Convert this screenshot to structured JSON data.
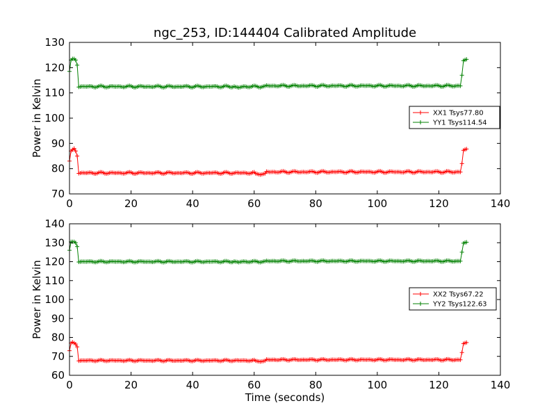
{
  "figure": {
    "title": "ngc_253, ID:144404 Calibrated Amplitude"
  },
  "chart_data": [
    {
      "type": "line",
      "title": "ngc_253, ID:144404 Calibrated Amplitude",
      "xlabel": "",
      "ylabel": "Power in Kelvin",
      "xlim": [
        0,
        140
      ],
      "ylim": [
        70,
        130
      ],
      "xticks": [
        0,
        20,
        40,
        60,
        80,
        100,
        120,
        140
      ],
      "yticks": [
        70,
        80,
        90,
        100,
        110,
        120,
        130
      ],
      "legend_position": "right",
      "series": [
        {
          "name": "XX1 Tsys77.80",
          "color": "#ff0000",
          "marker": "plus",
          "on_level": 87.5,
          "off_level": 78.3,
          "off_level_late": 78.7,
          "dip_at": 62,
          "dip_value": 77.6,
          "ramp_start": 127,
          "ramp_start_value": 82,
          "t_start": 0,
          "t_end": 129,
          "start_points": [
            [
              0,
              83
            ],
            [
              0.5,
              87
            ],
            [
              1,
              87.5
            ],
            [
              1.5,
              88
            ],
            [
              2,
              87
            ],
            [
              2.5,
              85
            ]
          ]
        },
        {
          "name": "YY1 Tsys114.54",
          "color": "#008000",
          "marker": "plus",
          "on_level": 123,
          "off_level": 112.5,
          "off_level_late": 112.8,
          "dip_at": 55,
          "dip_value": 112.1,
          "ramp_start": 127,
          "ramp_start_value": 117,
          "t_start": 0,
          "t_end": 129,
          "start_points": [
            [
              0,
              118.5
            ],
            [
              0.5,
              123
            ],
            [
              1,
              123.5
            ],
            [
              1.5,
              123.5
            ],
            [
              2,
              123
            ],
            [
              2.5,
              121
            ]
          ]
        }
      ]
    },
    {
      "type": "line",
      "title": "",
      "xlabel": "Time (seconds)",
      "ylabel": "Power in Kelvin",
      "xlim": [
        0,
        140
      ],
      "ylim": [
        60,
        140
      ],
      "xticks": [
        0,
        20,
        40,
        60,
        80,
        100,
        120,
        140
      ],
      "yticks": [
        60,
        70,
        80,
        90,
        100,
        110,
        120,
        130,
        140
      ],
      "legend_position": "right",
      "series": [
        {
          "name": "XX2 Tsys67.22",
          "color": "#ff0000",
          "marker": "plus",
          "on_level": 77,
          "off_level": 67.8,
          "off_level_late": 68.2,
          "dip_at": 62,
          "dip_value": 67.2,
          "ramp_start": 127,
          "ramp_start_value": 72,
          "t_start": 0,
          "t_end": 129,
          "start_points": [
            [
              0,
              73
            ],
            [
              0.5,
              77
            ],
            [
              1,
              77.5
            ],
            [
              1.5,
              77
            ],
            [
              2,
              76.5
            ],
            [
              2.5,
              75
            ]
          ]
        },
        {
          "name": "YY2 Tsys122.63",
          "color": "#008000",
          "marker": "plus",
          "on_level": 130,
          "off_level": 120,
          "off_level_late": 120.3,
          "dip_at": 55,
          "dip_value": 119.7,
          "ramp_start": 127,
          "ramp_start_value": 125,
          "t_start": 0,
          "t_end": 129,
          "start_points": [
            [
              0,
              126
            ],
            [
              0.5,
              130.5
            ],
            [
              1,
              130.5
            ],
            [
              1.5,
              130.5
            ],
            [
              2,
              130
            ],
            [
              2.5,
              128
            ]
          ]
        }
      ]
    }
  ]
}
